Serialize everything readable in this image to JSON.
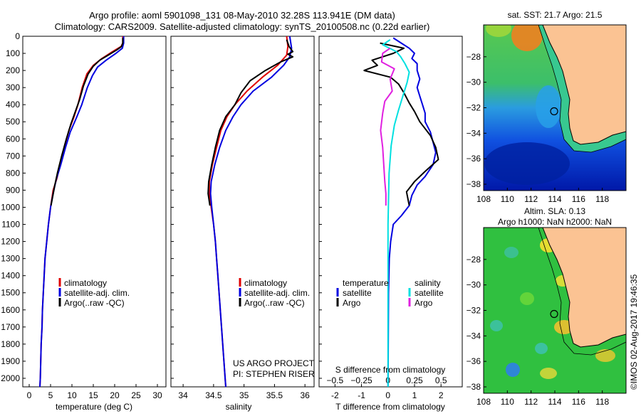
{
  "header": {
    "title_line1": "Argo profile: aoml 5901098_131 08-May-2010 32.28S 113.941E (DM data)",
    "title_line2": "Climatology: CARS2009. Satellite-adjusted climatology: synTS_20100508.nc (0.22d earlier)"
  },
  "side_label": "©IMOS 02-Aug-2017 19:46:35",
  "colors": {
    "red": "#e00000",
    "blue": "#0000e0",
    "black": "#000000",
    "cyan": "#00e0e0",
    "magenta": "#e020e0",
    "land": "#fbc393"
  },
  "chart_data": [
    {
      "type": "line",
      "id": "temperature",
      "xlabel": "temperature (deg C)",
      "ylim": [
        0,
        2050
      ],
      "xlim": [
        -1.5,
        32
      ],
      "x_ticks": [
        0,
        5,
        10,
        15,
        20,
        25,
        30
      ],
      "y_ticks": [
        0,
        100,
        200,
        300,
        400,
        500,
        600,
        700,
        800,
        900,
        1000,
        1100,
        1200,
        1300,
        1400,
        1500,
        1600,
        1700,
        1800,
        1900,
        2000
      ],
      "legend": [
        "climatology",
        "satellite-adj. clim.",
        "Argo(..raw -QC)"
      ],
      "series": [
        {
          "name": "climatology",
          "color": "red",
          "points": [
            [
              21.9,
              0
            ],
            [
              21.9,
              40
            ],
            [
              21.5,
              60
            ],
            [
              19.5,
              90
            ],
            [
              17,
              130
            ],
            [
              15,
              170
            ],
            [
              13.5,
              220
            ],
            [
              12.4,
              300
            ],
            [
              11.4,
              400
            ],
            [
              10.5,
              470
            ],
            [
              9.3,
              550
            ],
            [
              8.2,
              650
            ],
            [
              7.2,
              750
            ],
            [
              6.5,
              830
            ],
            [
              5.6,
              900
            ],
            [
              5,
              1000
            ],
            [
              4.5,
              1100
            ],
            [
              4.1,
              1200
            ],
            [
              3.7,
              1300
            ],
            [
              3.5,
              1400
            ],
            [
              3.3,
              1500
            ],
            [
              3.1,
              1600
            ],
            [
              3,
              1700
            ],
            [
              2.8,
              1800
            ],
            [
              2.7,
              1900
            ],
            [
              2.6,
              2000
            ],
            [
              2.5,
              2050
            ]
          ]
        },
        {
          "name": "satellite-adj. clim.",
          "color": "blue",
          "points": [
            [
              22.1,
              0
            ],
            [
              22.1,
              40
            ],
            [
              21.8,
              70
            ],
            [
              20.3,
              100
            ],
            [
              18,
              140
            ],
            [
              16,
              180
            ],
            [
              14.8,
              230
            ],
            [
              13.6,
              300
            ],
            [
              12.3,
              400
            ],
            [
              11,
              480
            ],
            [
              9.6,
              560
            ],
            [
              8.5,
              650
            ],
            [
              7.4,
              750
            ],
            [
              6.3,
              840
            ],
            [
              5.6,
              920
            ],
            [
              5,
              1000
            ],
            [
              4.5,
              1100
            ],
            [
              4.1,
              1200
            ],
            [
              3.7,
              1300
            ],
            [
              3.5,
              1400
            ],
            [
              3.3,
              1500
            ],
            [
              3.1,
              1600
            ],
            [
              3,
              1700
            ],
            [
              2.8,
              1800
            ],
            [
              2.7,
              1900
            ],
            [
              2.6,
              2000
            ],
            [
              2.5,
              2050
            ]
          ]
        },
        {
          "name": "Argo(..raw -QC)",
          "color": "black",
          "points": [
            [
              21.9,
              10
            ],
            [
              21.9,
              40
            ],
            [
              21.6,
              60
            ],
            [
              20.5,
              80
            ],
            [
              18.5,
              110
            ],
            [
              16.5,
              140
            ],
            [
              15,
              175
            ],
            [
              13.8,
              220
            ],
            [
              12.7,
              290
            ],
            [
              11.8,
              370
            ],
            [
              10.8,
              440
            ],
            [
              9.8,
              510
            ],
            [
              8.7,
              600
            ],
            [
              7.6,
              700
            ],
            [
              6.6,
              800
            ],
            [
              6,
              870
            ],
            [
              5.4,
              950
            ],
            [
              5.1,
              990
            ]
          ]
        }
      ]
    },
    {
      "type": "line",
      "id": "salinity",
      "xlabel": "salinity",
      "ylim": [
        0,
        2050
      ],
      "xlim": [
        33.8,
        36.15
      ],
      "x_ticks": [
        34,
        34.5,
        35,
        35.5,
        36
      ],
      "x_tick_labels": [
        "34",
        "34.5",
        "35",
        "35.5",
        "36"
      ],
      "legend": [
        "climatology",
        "satellite-adj. clim.",
        "Argo(..raw -QC)"
      ],
      "annotation": [
        "US ARGO PROJECT",
        "PI: STEPHEN RISER"
      ],
      "series": [
        {
          "name": "climatology",
          "color": "red",
          "points": [
            [
              35.7,
              0
            ],
            [
              35.72,
              60
            ],
            [
              35.7,
              110
            ],
            [
              35.55,
              170
            ],
            [
              35.3,
              240
            ],
            [
              35.05,
              320
            ],
            [
              34.85,
              400
            ],
            [
              34.72,
              470
            ],
            [
              34.62,
              550
            ],
            [
              34.55,
              650
            ],
            [
              34.48,
              750
            ],
            [
              34.43,
              850
            ],
            [
              34.43,
              920
            ],
            [
              34.46,
              1000
            ],
            [
              34.5,
              1100
            ],
            [
              34.53,
              1200
            ],
            [
              34.55,
              1300
            ],
            [
              34.57,
              1400
            ],
            [
              34.59,
              1500
            ],
            [
              34.61,
              1600
            ],
            [
              34.63,
              1700
            ],
            [
              34.65,
              1800
            ],
            [
              34.67,
              1900
            ],
            [
              34.69,
              2000
            ],
            [
              34.7,
              2050
            ]
          ]
        },
        {
          "name": "satellite-adj. clim.",
          "color": "blue",
          "points": [
            [
              35.75,
              0
            ],
            [
              35.78,
              70
            ],
            [
              35.75,
              120
            ],
            [
              35.65,
              170
            ],
            [
              35.45,
              240
            ],
            [
              35.15,
              320
            ],
            [
              34.95,
              400
            ],
            [
              34.82,
              470
            ],
            [
              34.7,
              550
            ],
            [
              34.6,
              650
            ],
            [
              34.52,
              750
            ],
            [
              34.46,
              850
            ],
            [
              34.45,
              920
            ],
            [
              34.47,
              1000
            ],
            [
              34.5,
              1100
            ],
            [
              34.53,
              1200
            ],
            [
              34.55,
              1300
            ],
            [
              34.57,
              1400
            ],
            [
              34.59,
              1500
            ],
            [
              34.61,
              1600
            ],
            [
              34.63,
              1700
            ],
            [
              34.65,
              1800
            ],
            [
              34.67,
              1900
            ],
            [
              34.69,
              2000
            ],
            [
              34.7,
              2050
            ]
          ]
        },
        {
          "name": "Argo(..raw -QC)",
          "color": "black",
          "points": [
            [
              35.7,
              20
            ],
            [
              35.74,
              60
            ],
            [
              35.8,
              90
            ],
            [
              35.72,
              105
            ],
            [
              35.8,
              120
            ],
            [
              35.6,
              150
            ],
            [
              35.35,
              200
            ],
            [
              35.1,
              260
            ],
            [
              34.95,
              330
            ],
            [
              34.85,
              400
            ],
            [
              34.7,
              470
            ],
            [
              34.6,
              550
            ],
            [
              34.53,
              650
            ],
            [
              34.47,
              750
            ],
            [
              34.42,
              850
            ],
            [
              34.41,
              920
            ],
            [
              34.44,
              990
            ]
          ]
        }
      ]
    },
    {
      "type": "line",
      "id": "differences",
      "xlabel": "T difference from climatology",
      "xlabel_top": "S difference from climatology",
      "xlim": [
        -2.6,
        2.8
      ],
      "x_ticks": [
        -2,
        -1,
        0,
        1,
        2
      ],
      "s_ticks": [
        -0.5,
        -0.25,
        0,
        0.25,
        0.5
      ],
      "s_tick_labels": [
        "−0.5",
        "−0.25",
        "0",
        "0.25",
        "0.5"
      ],
      "legend_headers": [
        "temperature",
        "salinity"
      ],
      "legend": [
        "satellite",
        "Argo",
        "satellite",
        "Argo"
      ],
      "series": [
        {
          "name": "T satellite",
          "color": "blue",
          "points": [
            [
              0.2,
              10
            ],
            [
              0.5,
              40
            ],
            [
              0.8,
              70
            ],
            [
              1,
              100
            ],
            [
              0.9,
              130
            ],
            [
              1.1,
              160
            ],
            [
              1.1,
              200
            ],
            [
              1.2,
              250
            ],
            [
              1.1,
              300
            ],
            [
              1.2,
              350
            ],
            [
              1.3,
              400
            ],
            [
              1.4,
              450
            ],
            [
              1.4,
              500
            ],
            [
              1.6,
              560
            ],
            [
              1.7,
              620
            ],
            [
              1.8,
              680
            ],
            [
              1.7,
              750
            ],
            [
              1.4,
              820
            ],
            [
              1.1,
              870
            ],
            [
              0.9,
              930
            ],
            [
              0.8,
              990
            ],
            [
              0.5,
              1050
            ],
            [
              0.2,
              1100
            ],
            [
              0.1,
              1200
            ],
            [
              0.05,
              1300
            ],
            [
              0.02,
              1500
            ],
            [
              0,
              2050
            ]
          ]
        },
        {
          "name": "T Argo",
          "color": "black",
          "points": [
            [
              -0.3,
              40
            ],
            [
              0.3,
              60
            ],
            [
              0.6,
              70
            ],
            [
              0.2,
              100
            ],
            [
              -0.6,
              140
            ],
            [
              -0.4,
              170
            ],
            [
              -0.9,
              200
            ],
            [
              0.1,
              240
            ],
            [
              0.4,
              280
            ],
            [
              0.6,
              330
            ],
            [
              0.8,
              390
            ],
            [
              1,
              440
            ],
            [
              1.2,
              500
            ],
            [
              1.6,
              580
            ],
            [
              1.8,
              650
            ],
            [
              1.9,
              720
            ],
            [
              1.4,
              790
            ],
            [
              1.0,
              850
            ],
            [
              0.7,
              910
            ],
            [
              0.8,
              990
            ]
          ]
        },
        {
          "name": "S satellite",
          "color": "cyan",
          "points": [
            [
              0.02,
              20
            ],
            [
              -0.05,
              50
            ],
            [
              0.08,
              90
            ],
            [
              0.12,
              120
            ],
            [
              0.16,
              160
            ],
            [
              0.2,
              210
            ],
            [
              0.18,
              270
            ],
            [
              0.14,
              350
            ],
            [
              0.1,
              430
            ],
            [
              0.06,
              520
            ],
            [
              0.03,
              640
            ],
            [
              0.01,
              800
            ],
            [
              0,
              1100
            ],
            [
              0,
              2050
            ]
          ]
        },
        {
          "name": "S Argo",
          "color": "magenta",
          "points": [
            [
              0.02,
              70
            ],
            [
              -0.05,
              100
            ],
            [
              -0.06,
              150
            ],
            [
              0.06,
              190
            ],
            [
              0.02,
              250
            ],
            [
              0.04,
              320
            ],
            [
              -0.03,
              380
            ],
            [
              -0.05,
              450
            ],
            [
              -0.07,
              550
            ],
            [
              -0.05,
              650
            ],
            [
              -0.04,
              750
            ],
            [
              -0.03,
              850
            ],
            [
              -0.02,
              920
            ],
            [
              -0.02,
              990
            ]
          ]
        }
      ]
    },
    {
      "type": "heatmap",
      "id": "sst_map",
      "title": "sat. SST: 21.7  Argo: 21.5",
      "xlim": [
        108,
        120
      ],
      "ylim": [
        -38.5,
        -25.5
      ],
      "x_ticks": [
        108,
        110,
        112,
        114,
        116,
        118
      ],
      "y_ticks": [
        -28,
        -30,
        -32,
        -34,
        -36,
        -38
      ],
      "argo_position": [
        113.941,
        -32.28
      ]
    },
    {
      "type": "heatmap",
      "id": "sla_map",
      "title_line1": "Altim. SLA: 0.13",
      "title_line2": "Argo h1000: NaN h2000: NaN",
      "xlim": [
        108,
        120
      ],
      "ylim": [
        -38.5,
        -25.5
      ],
      "x_ticks": [
        108,
        110,
        112,
        114,
        116,
        118
      ],
      "y_ticks": [
        -28,
        -30,
        -32,
        -34,
        -36,
        -38
      ],
      "argo_position": [
        113.941,
        -32.28
      ]
    }
  ]
}
